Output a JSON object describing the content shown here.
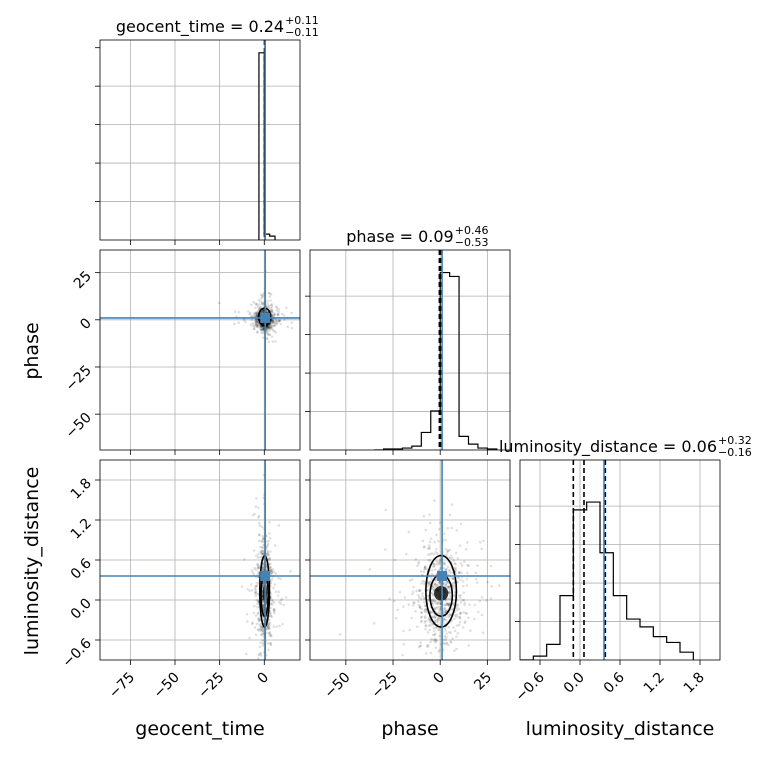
{
  "chart_data": {
    "type": "corner",
    "truth_color": "#4682b4",
    "params": [
      "geocent_time",
      "phase",
      "luminosity_distance"
    ],
    "titles": [
      {
        "param": "geocent_time",
        "prefix": "geocent_time = ",
        "median": "0.24",
        "plus": "+0.11",
        "minus": "−0.11"
      },
      {
        "param": "phase",
        "prefix": "phase = ",
        "median": "0.09",
        "plus": "+0.46",
        "minus": "−0.53"
      },
      {
        "param": "luminosity_distance",
        "prefix": "luminosity_distance = ",
        "median": "0.06",
        "plus": "+0.32",
        "minus": "−0.16"
      }
    ],
    "axis_labels": {
      "x": [
        "geocent_time",
        "phase",
        "luminosity_distance"
      ],
      "y": [
        "phase",
        "luminosity_distance"
      ]
    },
    "ranges": {
      "geocent_time": [
        -92,
        20
      ],
      "phase": [
        -69,
        37
      ],
      "luminosity_distance": [
        -0.9,
        2.1
      ]
    },
    "ticks": {
      "geocent_time": {
        "values": [
          -75,
          -50,
          -25,
          0
        ],
        "labels": [
          "−75",
          "−50",
          "−25",
          "0"
        ]
      },
      "phase": {
        "values": [
          -50,
          -25,
          0,
          25
        ],
        "labels": [
          "−50",
          "−25",
          "0",
          "25"
        ]
      },
      "phase_y": {
        "values": [
          -50,
          -25,
          0,
          25
        ],
        "labels": [
          "−50",
          "−25",
          "0",
          "25"
        ]
      },
      "luminosity_distance": {
        "values": [
          -0.6,
          0.0,
          0.6,
          1.2,
          1.8
        ],
        "labels": [
          "−0.6",
          "0.0",
          "0.6",
          "1.2",
          "1.8"
        ]
      }
    },
    "truths": {
      "geocent_time": 0.5,
      "phase": 1.0,
      "luminosity_distance": 0.36
    },
    "quantiles": {
      "geocent_time": [
        0.13,
        0.24,
        0.35
      ],
      "phase": [
        -0.44,
        0.09,
        0.55
      ],
      "luminosity_distance": [
        -0.1,
        0.06,
        0.38
      ]
    },
    "histograms": {
      "geocent_time": {
        "edges": [
          -3,
          0,
          3,
          6
        ],
        "heights": [
          0.96,
          0.03,
          0.02
        ]
      },
      "phase": {
        "edges": [
          -35,
          -30,
          -25,
          -20,
          -15,
          -10,
          -5,
          0,
          5,
          10,
          15,
          20,
          25,
          30
        ],
        "heights": [
          0.0,
          0.005,
          0.005,
          0.01,
          0.02,
          0.09,
          0.2,
          0.91,
          0.89,
          0.07,
          0.03,
          0.01,
          0.005
        ]
      },
      "luminosity_distance": {
        "edges": [
          -0.9,
          -0.7,
          -0.5,
          -0.3,
          -0.1,
          0.1,
          0.3,
          0.5,
          0.7,
          0.9,
          1.1,
          1.3,
          1.5,
          1.7
        ],
        "heights": [
          0.0,
          0.02,
          0.08,
          0.33,
          0.77,
          0.81,
          0.55,
          0.33,
          0.21,
          0.17,
          0.12,
          0.09,
          0.04
        ]
      }
    },
    "scatter_spread": {
      "geocent_time_vs_phase": {
        "x_center": 0.2,
        "x_sd": 2.5,
        "y_center": 0.5,
        "y_sd": 3
      },
      "geocent_time_vs_luminosity_distance": {
        "x_center": 0.2,
        "x_sd": 2.0,
        "y_center": 0.1,
        "y_sd": 0.35
      },
      "phase_vs_luminosity_distance": {
        "x_center": 0.5,
        "x_sd": 6,
        "y_center": 0.1,
        "y_sd": 0.35
      }
    }
  }
}
